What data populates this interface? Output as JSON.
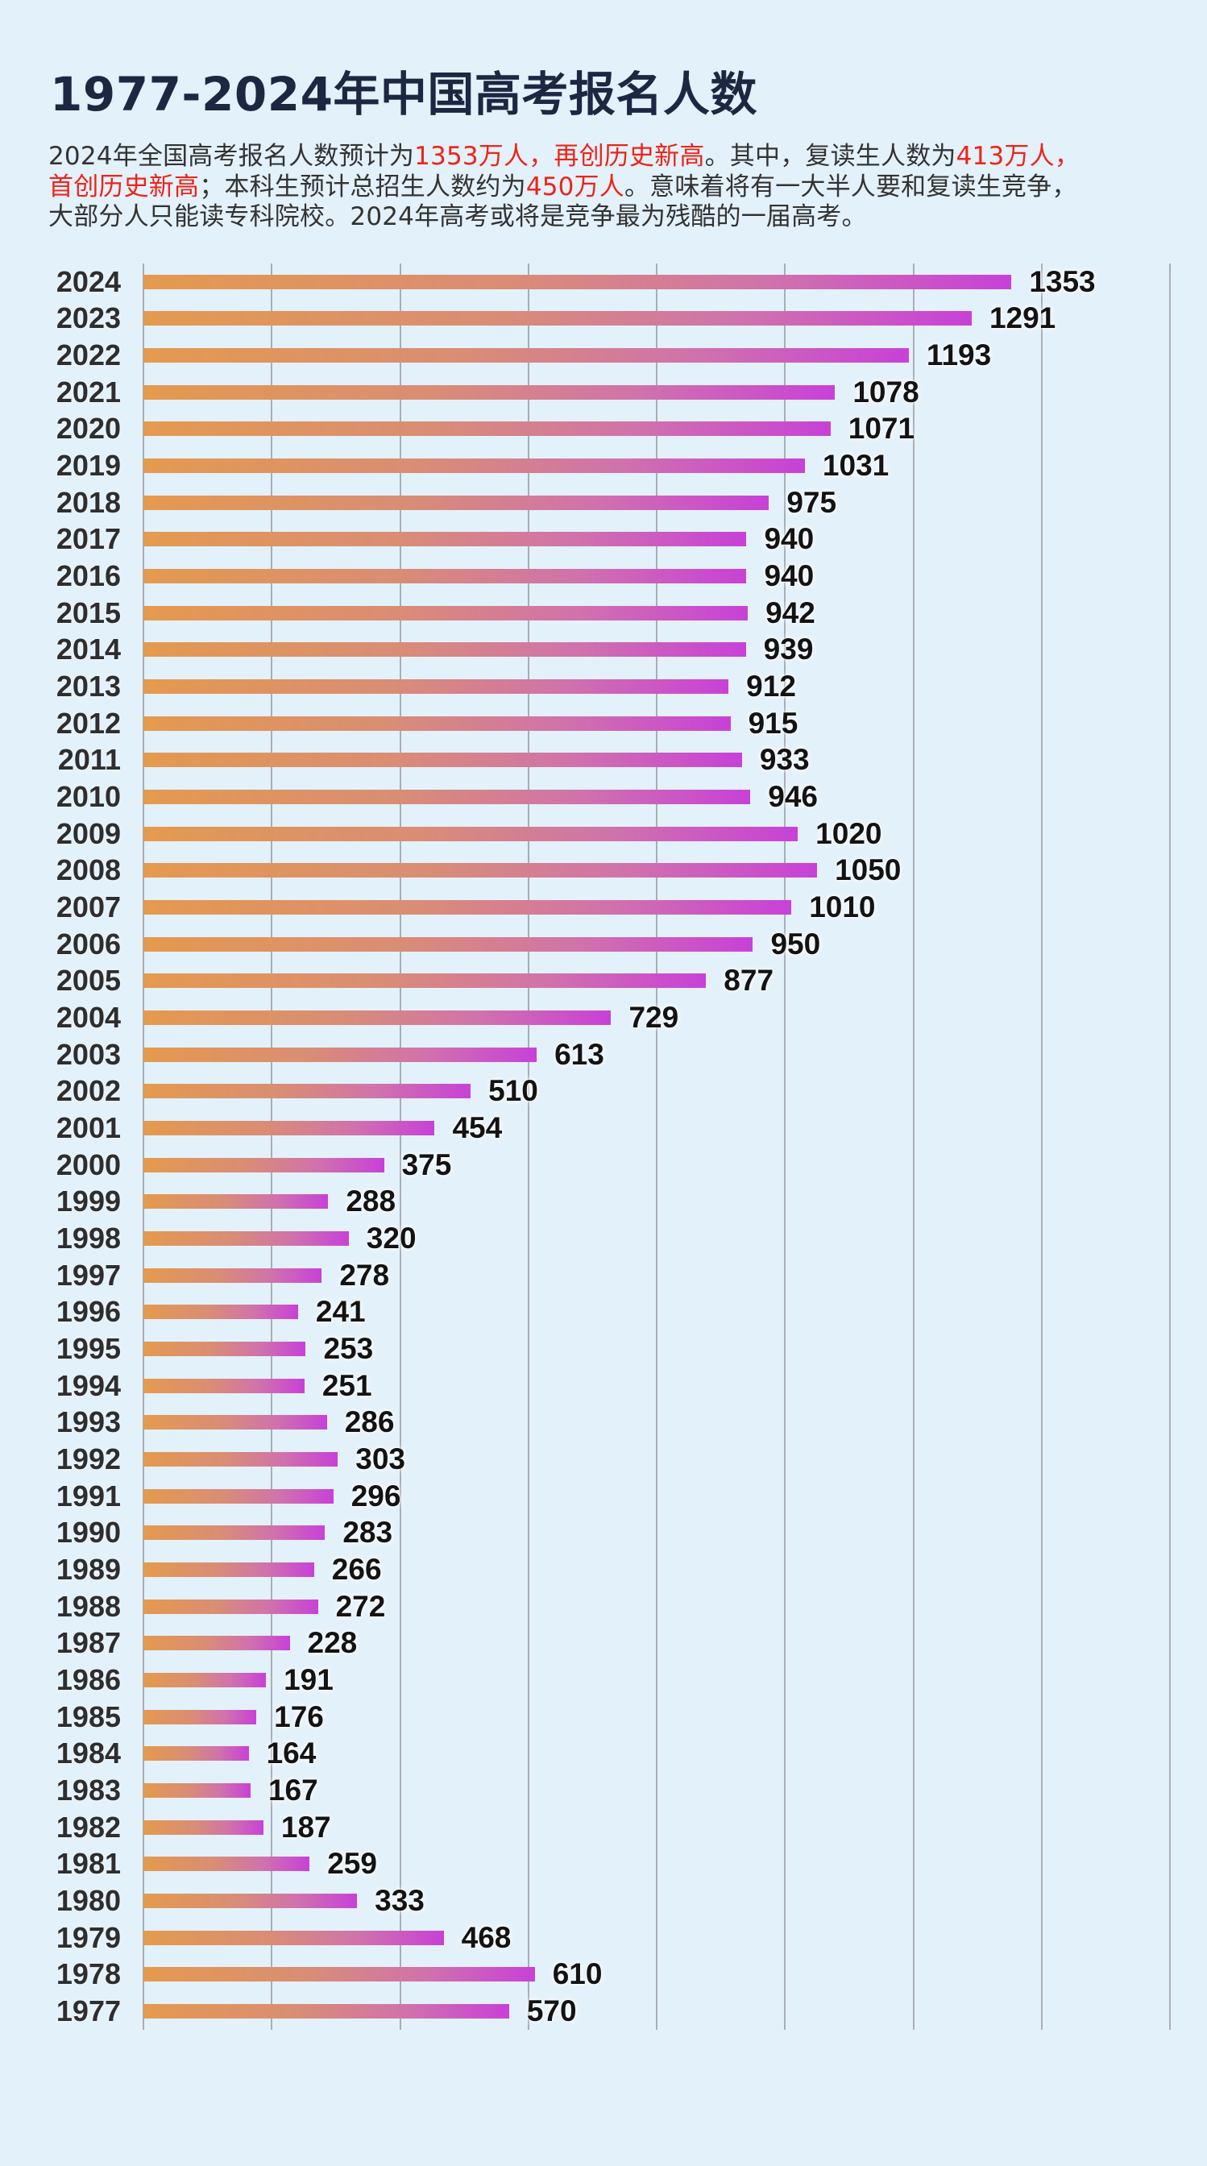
{
  "page": {
    "background": "#e3f1fa"
  },
  "header": {
    "title": "1977-2024年中国高考报名人数",
    "title_color": "#1d2742"
  },
  "intro": {
    "text_color": "#333333",
    "highlight_color": "#ee2318",
    "segments": [
      {
        "text": "2024年全国高考报名人数预计为",
        "highlight": false,
        "break_after": false
      },
      {
        "text": "1353万人，再创历史新高",
        "highlight": true,
        "break_after": false
      },
      {
        "text": "。其中，复读生人数为",
        "highlight": false,
        "break_after": false
      },
      {
        "text": "413万人，",
        "highlight": true,
        "break_after": true
      },
      {
        "text": "首创历史新高",
        "highlight": true,
        "break_after": false
      },
      {
        "text": "；本科生预计总招生人数约为",
        "highlight": false,
        "break_after": false
      },
      {
        "text": "450万人",
        "highlight": true,
        "break_after": false
      },
      {
        "text": "。意味着将有一大半人要和复读生竞争，",
        "highlight": false,
        "break_after": true
      },
      {
        "text": "大部分人只能读专科院校。2024年高考或将是竞争最为残酷的一届高考。",
        "highlight": false,
        "break_after": false
      }
    ]
  },
  "chart_data": {
    "type": "bar",
    "orientation": "horizontal",
    "title": "1977-2024年中国高考报名人数",
    "unit": "万人",
    "categories": [
      "2024",
      "2023",
      "2022",
      "2021",
      "2020",
      "2019",
      "2018",
      "2017",
      "2016",
      "2015",
      "2014",
      "2013",
      "2012",
      "2011",
      "2010",
      "2009",
      "2008",
      "2007",
      "2006",
      "2005",
      "2004",
      "2003",
      "2002",
      "2001",
      "2000",
      "1999",
      "1998",
      "1997",
      "1996",
      "1995",
      "1994",
      "1993",
      "1992",
      "1991",
      "1990",
      "1989",
      "1988",
      "1987",
      "1986",
      "1985",
      "1984",
      "1983",
      "1982",
      "1981",
      "1980",
      "1979",
      "1978",
      "1977"
    ],
    "values": [
      1353,
      1291,
      1193,
      1078,
      1071,
      1031,
      975,
      940,
      940,
      942,
      939,
      912,
      915,
      933,
      946,
      1020,
      1050,
      1010,
      950,
      877,
      729,
      613,
      510,
      454,
      375,
      288,
      320,
      278,
      241,
      253,
      251,
      286,
      303,
      296,
      283,
      266,
      272,
      228,
      191,
      176,
      164,
      167,
      187,
      259,
      333,
      468,
      610,
      570
    ],
    "xlim": [
      0,
      1600
    ],
    "grid_step": 200,
    "grid": true,
    "legend": false,
    "bar_gradient": [
      "#e49a4e 0%",
      "#d98d75 42%",
      "#d072ac 72%",
      "#c841d8 100%"
    ],
    "gridline_color": "#a8aeb5",
    "year_label_color": "#2e2e2e",
    "value_label_color": "#131313"
  }
}
